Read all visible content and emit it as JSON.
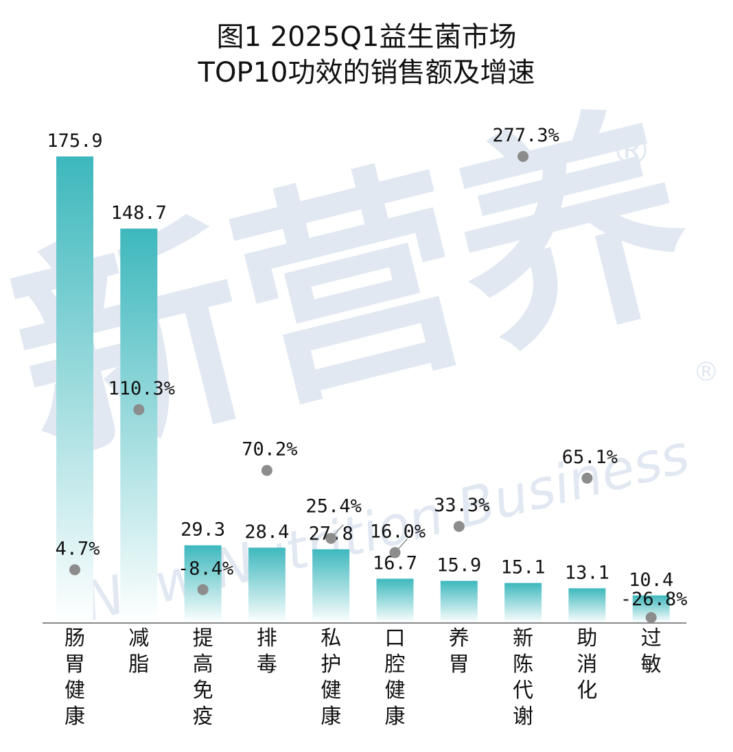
{
  "title_line1": "图1 2025Q1益生菌市场",
  "title_line2": "TOP10功效的销售额及增速",
  "watermark": {
    "brand_cn": "新营养",
    "brand_en": "New Nutrition Business",
    "registered_mark": "®",
    "color": "#c9d6e6"
  },
  "colors": {
    "bar_top": "#3db8bd",
    "bar_bottom": "#ffffff",
    "dot": "#8c8c8c",
    "axis": "#888888"
  },
  "chart_data": {
    "type": "bar",
    "title": "图1 2025Q1益生菌市场 TOP10功效的销售额及增速",
    "categories": [
      "肠胃健康",
      "减脂",
      "提高免疫",
      "排毒",
      "私护健康",
      "口腔健康",
      "养胃",
      "新陈代谢",
      "助消化",
      "过敏"
    ],
    "series": [
      {
        "kind": "bar",
        "values": [
          175.9,
          148.7,
          29.3,
          28.4,
          27.8,
          16.7,
          15.9,
          15.1,
          13.1,
          10.4
        ],
        "labels": [
          "175.9",
          "148.7",
          "29.3",
          "28.4",
          "27.8",
          "16.7",
          "15.9",
          "15.1",
          "13.1",
          "10.4"
        ]
      },
      {
        "kind": "scatter",
        "values": [
          4.7,
          110.3,
          -8.4,
          70.2,
          25.4,
          16.0,
          33.3,
          277.3,
          65.1,
          -26.8
        ],
        "labels": [
          "4.7%",
          "110.3%",
          "-8.4%",
          "70.2%",
          "25.4%",
          "16.0%",
          "33.3%",
          "277.3%",
          "65.1%",
          "-26.8%"
        ]
      }
    ],
    "bar_axis_range": [
      0,
      175.9
    ],
    "growth_axis_range": [
      -26.8,
      277.3
    ],
    "grid": false,
    "legend": "none"
  }
}
